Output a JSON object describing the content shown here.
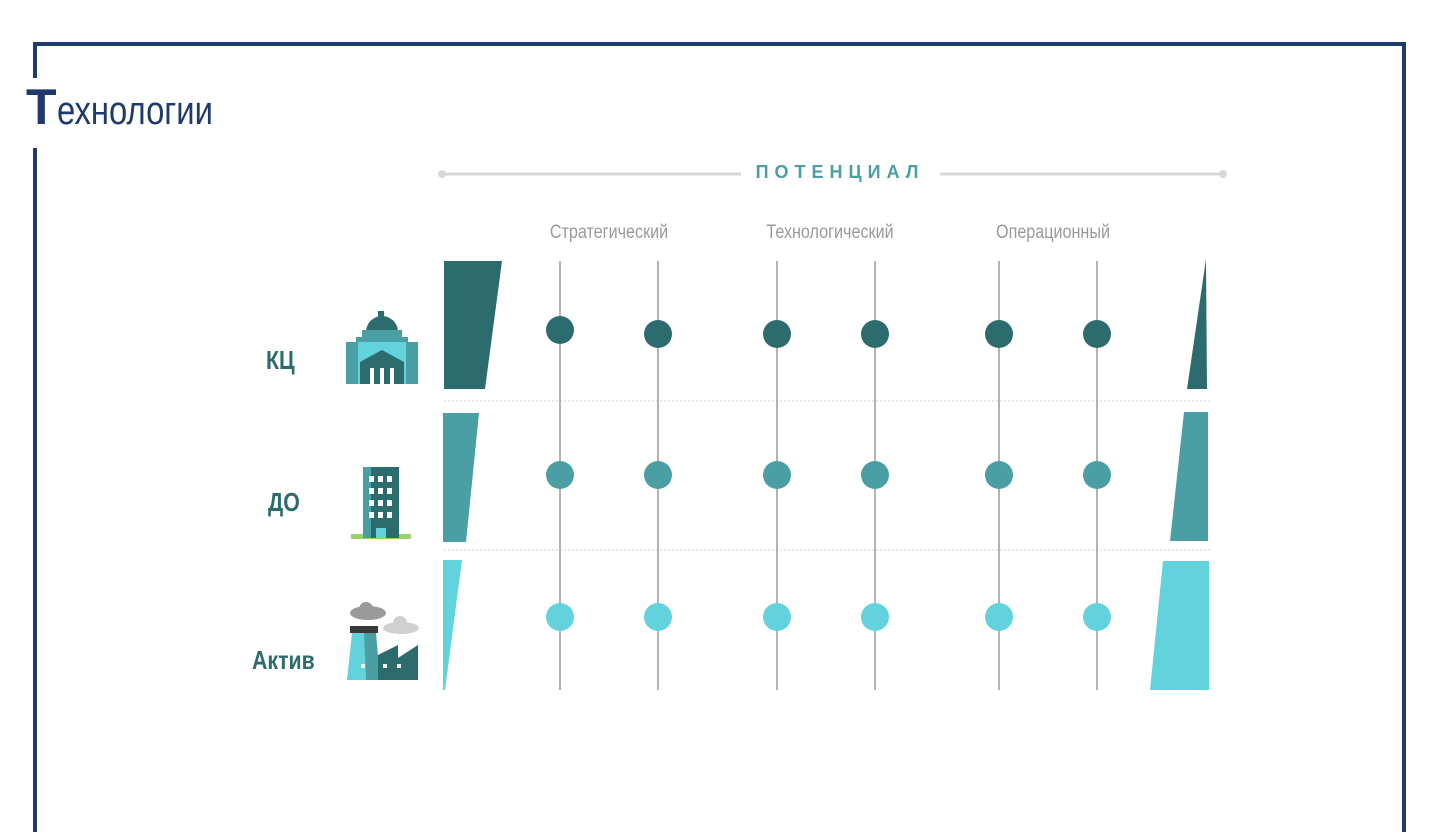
{
  "title": {
    "first_letter": "Т",
    "rest": "ехнологии"
  },
  "header": {
    "potential": "ПОТЕНЦИАЛ"
  },
  "columns": [
    "Стратегический",
    "Технологический",
    "Операционный"
  ],
  "rows": [
    {
      "label": "КЦ",
      "icon": "government-building-icon",
      "color": "#2c6b6e",
      "left_level": 1.0,
      "right_level": 0.2
    },
    {
      "label": "ДО",
      "icon": "office-tower-icon",
      "color": "#4a9fa5",
      "left_level": 0.6,
      "right_level": 0.6
    },
    {
      "label": "Актив",
      "icon": "factory-icon",
      "color": "#62d3dd",
      "left_level": 0.2,
      "right_level": 1.0
    }
  ],
  "colors": {
    "frame": "#1f3a6b",
    "dark": "#2c6b6e",
    "mid": "#4a9fa5",
    "light": "#62d3dd",
    "muted_text": "#999999"
  }
}
